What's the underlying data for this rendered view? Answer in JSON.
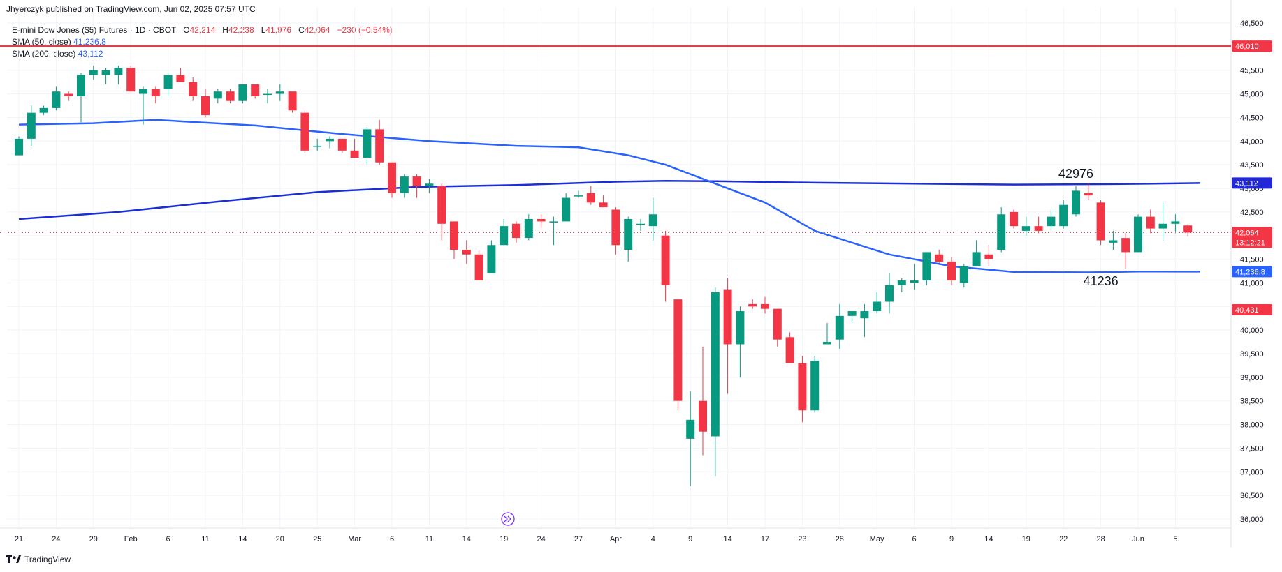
{
  "publisher": "Jhyerczyk published on TradingView.com, Jun 02, 2025 07:57 UTC",
  "legend": {
    "symbol": "E-mini Dow Jones ($5) Futures · 1D · CBOT",
    "o_label": "O",
    "o_value": "42,214",
    "h_label": "H",
    "h_value": "42,238",
    "l_label": "L",
    "l_value": "41,976",
    "c_label": "C",
    "c_value": "42,064",
    "change": "−230 (−0.54%)",
    "sma50_label": "SMA (50, close)",
    "sma50_value": "41,236.8",
    "sma200_label": "SMA (200, close)",
    "sma200_value": "43,112"
  },
  "footer": {
    "brand": "TradingView",
    "logo_icon": "tradingview-logo-icon"
  },
  "colors": {
    "up": "#089981",
    "down": "#f23645",
    "sma50": "#2962ff",
    "sma200": "#1b2ed6",
    "hline": "#f23645"
  },
  "price_tags": [
    {
      "value": 46010,
      "label": "46,010",
      "color": "#f23645"
    },
    {
      "value": 43112,
      "label": "43,112",
      "color": "#2028d8"
    },
    {
      "value": 42064,
      "label": "42,064",
      "sub": "13:12:21",
      "color": "#f23645"
    },
    {
      "value": 41236.8,
      "label": "41,236.8",
      "color": "#2962ff"
    },
    {
      "value": 40431,
      "label": "40,431",
      "color": "#f23645"
    }
  ],
  "annotations": [
    {
      "text": "42976",
      "price": 43220,
      "index": 85
    },
    {
      "text": "41236",
      "price": 40950,
      "index": 87
    }
  ],
  "chart_data": {
    "type": "candlestick",
    "y_axis_ticks": [
      "36,000",
      "36,500",
      "37,000",
      "37,500",
      "38,000",
      "38,500",
      "39,000",
      "39,500",
      "40,000",
      "40,500",
      "41,000",
      "41,500",
      "42,000",
      "42,500",
      "43,000",
      "43,500",
      "44,000",
      "44,500",
      "45,000",
      "45,500",
      "46,000",
      "46,500"
    ],
    "ylim": [
      35800,
      46700
    ],
    "x_axis_ticks": [
      {
        "label": "21",
        "index": 0
      },
      {
        "label": "24",
        "index": 3
      },
      {
        "label": "29",
        "index": 6
      },
      {
        "label": "Feb",
        "index": 9
      },
      {
        "label": "6",
        "index": 12
      },
      {
        "label": "11",
        "index": 15
      },
      {
        "label": "14",
        "index": 18
      },
      {
        "label": "20",
        "index": 21
      },
      {
        "label": "25",
        "index": 24
      },
      {
        "label": "Mar",
        "index": 27
      },
      {
        "label": "6",
        "index": 30
      },
      {
        "label": "11",
        "index": 33
      },
      {
        "label": "14",
        "index": 36
      },
      {
        "label": "19",
        "index": 39
      },
      {
        "label": "24",
        "index": 42
      },
      {
        "label": "27",
        "index": 45
      },
      {
        "label": "Apr",
        "index": 48
      },
      {
        "label": "4",
        "index": 51
      },
      {
        "label": "9",
        "index": 54
      },
      {
        "label": "14",
        "index": 57
      },
      {
        "label": "17",
        "index": 60
      },
      {
        "label": "23",
        "index": 63
      },
      {
        "label": "28",
        "index": 66
      },
      {
        "label": "May",
        "index": 69
      },
      {
        "label": "6",
        "index": 72
      },
      {
        "label": "9",
        "index": 75
      },
      {
        "label": "14",
        "index": 78
      },
      {
        "label": "19",
        "index": 81
      },
      {
        "label": "22",
        "index": 84
      },
      {
        "label": "28",
        "index": 87
      },
      {
        "label": "Jun",
        "index": 90
      },
      {
        "label": "5",
        "index": 93
      }
    ],
    "horizontal_line": 46010,
    "current_price_line": 42064,
    "candles": [
      [
        43700,
        44100,
        43700,
        44050
      ],
      [
        44050,
        44750,
        43900,
        44600
      ],
      [
        44600,
        44750,
        44550,
        44700
      ],
      [
        44700,
        45150,
        44650,
        45050
      ],
      [
        45000,
        45050,
        44850,
        44950
      ],
      [
        44950,
        45450,
        44400,
        45400
      ],
      [
        45400,
        45600,
        45300,
        45500
      ],
      [
        45400,
        45550,
        45200,
        45500
      ],
      [
        45400,
        45600,
        45200,
        45550
      ],
      [
        45550,
        45600,
        45050,
        45050
      ],
      [
        45000,
        45150,
        44350,
        45100
      ],
      [
        45100,
        45150,
        44800,
        44950
      ],
      [
        45100,
        45450,
        44950,
        45400
      ],
      [
        45400,
        45550,
        45300,
        45250
      ],
      [
        45250,
        45350,
        44850,
        44950
      ],
      [
        44950,
        45100,
        44500,
        44550
      ],
      [
        44900,
        45100,
        44800,
        45050
      ],
      [
        45050,
        45100,
        44800,
        44850
      ],
      [
        44850,
        45200,
        44800,
        45200
      ],
      [
        45200,
        45200,
        44900,
        44950
      ],
      [
        45000,
        45100,
        44800,
        45000
      ],
      [
        45000,
        45200,
        44850,
        45050
      ],
      [
        45050,
        45050,
        44600,
        44650
      ],
      [
        44600,
        44650,
        43750,
        43800
      ],
      [
        43900,
        44050,
        43800,
        43900
      ],
      [
        44000,
        44100,
        43850,
        44050
      ],
      [
        44050,
        44050,
        43750,
        43800
      ],
      [
        43800,
        44050,
        43650,
        43650
      ],
      [
        43650,
        44300,
        43500,
        44250
      ],
      [
        44250,
        44450,
        43500,
        43550
      ],
      [
        43550,
        43550,
        42800,
        42900
      ],
      [
        42900,
        43300,
        42800,
        43250
      ],
      [
        43250,
        43300,
        42800,
        43050
      ],
      [
        43050,
        43200,
        42900,
        43100
      ],
      [
        43050,
        43100,
        41900,
        42250
      ],
      [
        42300,
        42300,
        41500,
        41700
      ],
      [
        41700,
        41900,
        41400,
        41600
      ],
      [
        41600,
        41700,
        41050,
        41050
      ],
      [
        41200,
        41900,
        41200,
        41800
      ],
      [
        41800,
        42350,
        41800,
        42200
      ],
      [
        42250,
        42300,
        41850,
        41950
      ],
      [
        41950,
        42450,
        41900,
        42350
      ],
      [
        42350,
        42450,
        42150,
        42300
      ],
      [
        42300,
        42400,
        41800,
        42300
      ],
      [
        42300,
        42900,
        42300,
        42800
      ],
      [
        42850,
        42950,
        42800,
        42850
      ],
      [
        42900,
        43050,
        42650,
        42700
      ],
      [
        42700,
        42850,
        42600,
        42600
      ],
      [
        42550,
        42600,
        41600,
        41800
      ],
      [
        41700,
        42400,
        41450,
        42350
      ],
      [
        42250,
        42350,
        42100,
        42250
      ],
      [
        42200,
        42800,
        41900,
        42450
      ],
      [
        42000,
        42100,
        40600,
        40950
      ],
      [
        40650,
        40650,
        38300,
        38500
      ],
      [
        37700,
        38700,
        36700,
        38100
      ],
      [
        38500,
        39650,
        37350,
        37850
      ],
      [
        37750,
        40900,
        36900,
        40800
      ],
      [
        40850,
        41100,
        38650,
        39700
      ],
      [
        39700,
        40500,
        39000,
        40400
      ],
      [
        40550,
        40650,
        40450,
        40500
      ],
      [
        40550,
        40700,
        40350,
        40450
      ],
      [
        40450,
        40450,
        39650,
        39800
      ],
      [
        39850,
        39950,
        39350,
        39300
      ],
      [
        39300,
        39450,
        38050,
        38300
      ],
      [
        38300,
        39450,
        38250,
        39350
      ],
      [
        39700,
        40150,
        39700,
        39750
      ],
      [
        39800,
        40550,
        39600,
        40300
      ],
      [
        40300,
        40400,
        40150,
        40400
      ],
      [
        40250,
        40550,
        39850,
        40400
      ],
      [
        40400,
        40800,
        40350,
        40600
      ],
      [
        40600,
        41200,
        40350,
        40950
      ],
      [
        40950,
        41100,
        40800,
        41050
      ],
      [
        41000,
        41400,
        40850,
        41050
      ],
      [
        41050,
        41650,
        40950,
        41650
      ],
      [
        41600,
        41700,
        41400,
        41450
      ],
      [
        41450,
        41550,
        40950,
        41050
      ],
      [
        41000,
        41400,
        40900,
        41350
      ],
      [
        41350,
        41900,
        41350,
        41650
      ],
      [
        41600,
        41800,
        41350,
        41500
      ],
      [
        41700,
        42600,
        41650,
        42450
      ],
      [
        42500,
        42550,
        42150,
        42200
      ],
      [
        42100,
        42400,
        42000,
        42200
      ],
      [
        42200,
        42400,
        42050,
        42100
      ],
      [
        42200,
        42550,
        42100,
        42400
      ],
      [
        42200,
        42750,
        42150,
        42650
      ],
      [
        42450,
        43050,
        42400,
        42950
      ],
      [
        42900,
        43100,
        42750,
        42850
      ],
      [
        42700,
        42750,
        41800,
        41900
      ],
      [
        41850,
        42100,
        41700,
        41900
      ],
      [
        41950,
        42050,
        41300,
        41650
      ],
      [
        41650,
        42450,
        41650,
        42400
      ],
      [
        42400,
        42550,
        42050,
        42150
      ],
      [
        42150,
        42700,
        41900,
        42250
      ],
      [
        42250,
        42450,
        42050,
        42300
      ],
      [
        42214,
        42238,
        41976,
        42064
      ]
    ],
    "sma50": [
      [
        0,
        44350
      ],
      [
        6,
        44380
      ],
      [
        11,
        44450
      ],
      [
        19,
        44330
      ],
      [
        26,
        44150
      ],
      [
        33,
        44000
      ],
      [
        40,
        43900
      ],
      [
        45,
        43870
      ],
      [
        49,
        43700
      ],
      [
        52,
        43500
      ],
      [
        56,
        43100
      ],
      [
        60,
        42700
      ],
      [
        64,
        42100
      ],
      [
        70,
        41600
      ],
      [
        75,
        41350
      ],
      [
        80,
        41230
      ],
      [
        86,
        41220
      ],
      [
        90,
        41240
      ],
      [
        95,
        41236.8
      ]
    ],
    "sma200": [
      [
        0,
        42350
      ],
      [
        8,
        42500
      ],
      [
        16,
        42720
      ],
      [
        24,
        42920
      ],
      [
        32,
        43030
      ],
      [
        40,
        43070
      ],
      [
        48,
        43140
      ],
      [
        52,
        43160
      ],
      [
        56,
        43150
      ],
      [
        64,
        43120
      ],
      [
        72,
        43100
      ],
      [
        80,
        43080
      ],
      [
        88,
        43090
      ],
      [
        95,
        43112
      ]
    ]
  }
}
